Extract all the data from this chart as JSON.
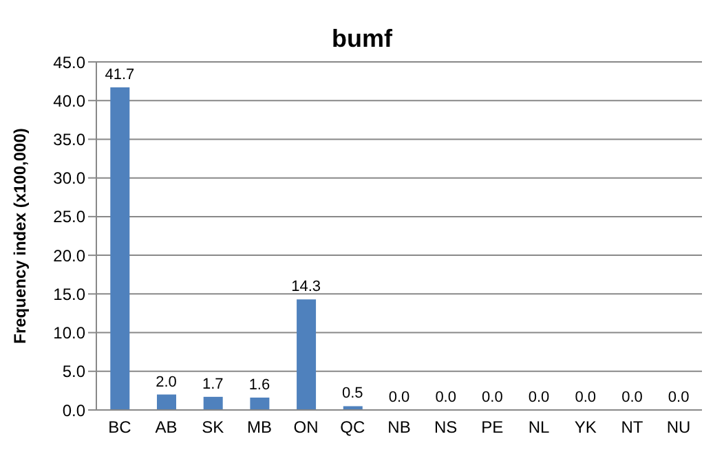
{
  "chart_data": {
    "type": "bar",
    "title": "bumf",
    "ylabel": "Frequency index (x100,000)",
    "categories": [
      "BC",
      "AB",
      "SK",
      "MB",
      "ON",
      "QC",
      "NB",
      "NS",
      "PE",
      "NL",
      "YK",
      "NT",
      "NU"
    ],
    "values": [
      41.7,
      2.0,
      1.7,
      1.6,
      14.3,
      0.5,
      0.0,
      0.0,
      0.0,
      0.0,
      0.0,
      0.0,
      0.0
    ],
    "value_labels": [
      "41.7",
      "2.0",
      "1.7",
      "1.6",
      "14.3",
      "0.5",
      "0.0",
      "0.0",
      "0.0",
      "0.0",
      "0.0",
      "0.0",
      "0.0"
    ],
    "color": "#4f81bd",
    "ylim": [
      0,
      45
    ],
    "yticks": [
      {
        "value": 0,
        "label": "0.0"
      },
      {
        "value": 5,
        "label": "5.0"
      },
      {
        "value": 10,
        "label": "10.0"
      },
      {
        "value": 15,
        "label": "15.0"
      },
      {
        "value": 20,
        "label": "20.0"
      },
      {
        "value": 25,
        "label": "25.0"
      },
      {
        "value": 30,
        "label": "30.0"
      },
      {
        "value": 35,
        "label": "35.0"
      },
      {
        "value": 40,
        "label": "40.0"
      },
      {
        "value": 45,
        "label": "45.0"
      }
    ],
    "grid": "y",
    "legend": false
  }
}
